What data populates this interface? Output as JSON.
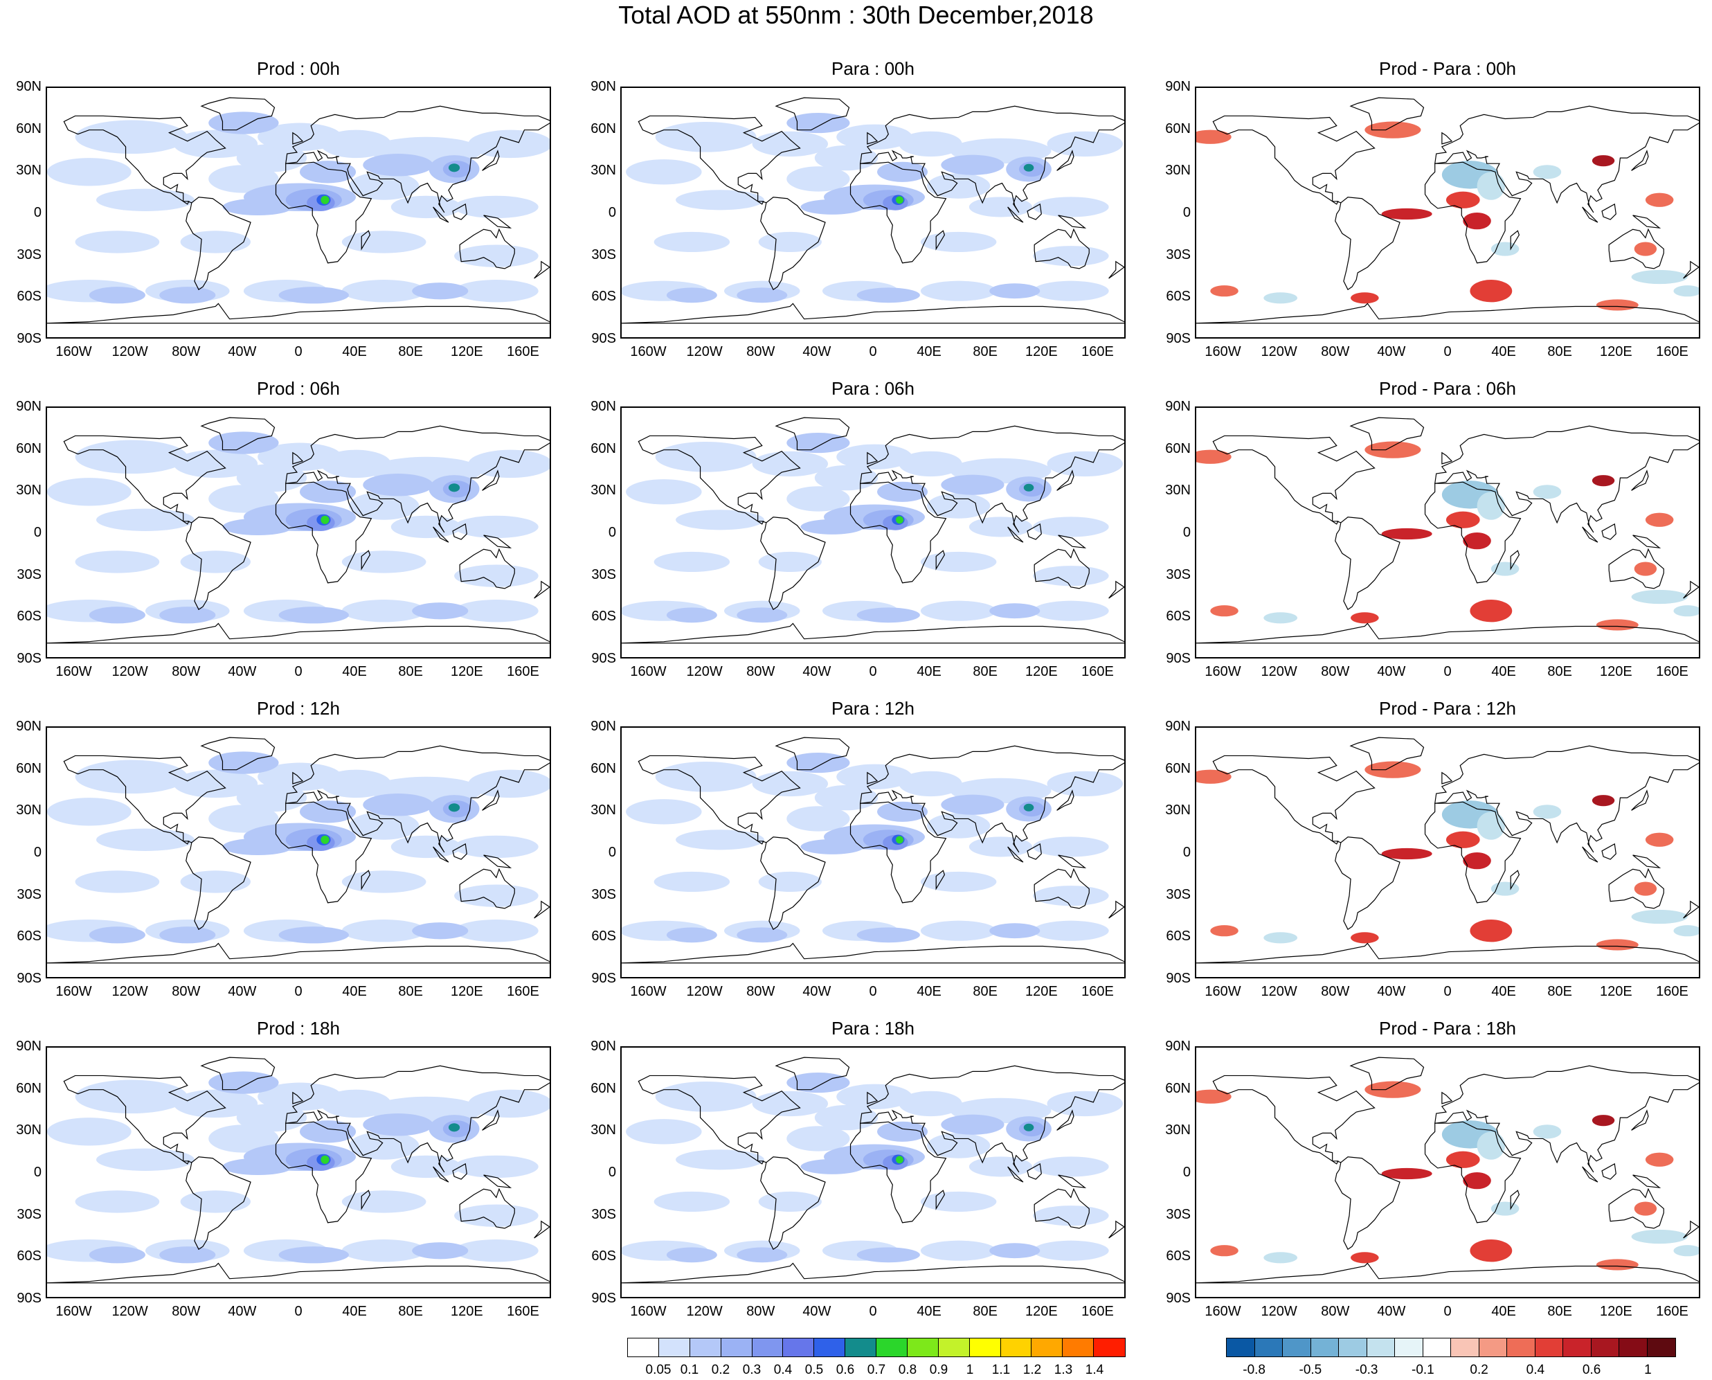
{
  "title": "Total AOD at 550nm : 30th December,2018",
  "rows": [
    {
      "panels": [
        "Prod : 00h",
        "Para : 00h",
        "Prod - Para : 00h"
      ]
    },
    {
      "panels": [
        "Prod : 06h",
        "Para : 06h",
        "Prod - Para : 06h"
      ]
    },
    {
      "panels": [
        "Prod : 12h",
        "Para : 12h",
        "Prod - Para : 12h"
      ]
    },
    {
      "panels": [
        "Prod : 18h",
        "Para : 18h",
        "Prod - Para : 18h"
      ]
    }
  ],
  "lat_ticks": [
    "90N",
    "60N",
    "30N",
    "0",
    "30S",
    "60S",
    "90S"
  ],
  "lon_ticks": [
    "160W",
    "120W",
    "80W",
    "40W",
    "0",
    "40E",
    "80E",
    "120E",
    "160E"
  ],
  "aod_colorbar": {
    "labels": [
      "0.05",
      "0.1",
      "0.2",
      "0.3",
      "0.4",
      "0.5",
      "0.6",
      "0.7",
      "0.8",
      "0.9",
      "1",
      "1.1",
      "1.2",
      "1.3",
      "1.4"
    ],
    "colors": [
      "#ffffff",
      "#d3e2fc",
      "#b4c8f8",
      "#9bb2f4",
      "#7f96ef",
      "#6676ea",
      "#2f61e9",
      "#138c8c",
      "#2bd62b",
      "#7de81a",
      "#c3f22a",
      "#ffff00",
      "#ffd200",
      "#ffa800",
      "#ff7b00",
      "#ff1e00"
    ]
  },
  "diff_colorbar": {
    "labels": [
      "-0.8",
      "-0.5",
      "-0.3",
      "-0.1",
      "0.2",
      "0.4",
      "0.6",
      "1"
    ],
    "colors": [
      "#0a58a4",
      "#2b78b8",
      "#4f96c8",
      "#74b2d6",
      "#9dcbe3",
      "#c4e2ee",
      "#e6f4f8",
      "#ffffff",
      "#f9c5b6",
      "#f49a84",
      "#ee6d57",
      "#e23e36",
      "#c9232a",
      "#a81720",
      "#850c16",
      "#5e0a10"
    ]
  }
}
